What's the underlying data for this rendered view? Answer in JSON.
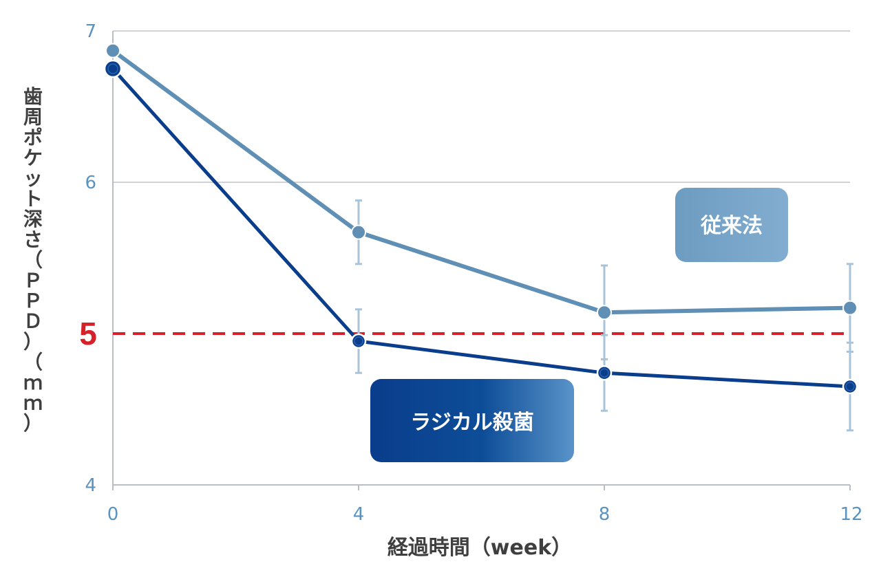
{
  "chart_data": {
    "type": "line",
    "xlabel": "経過時間（week）",
    "ylabel": "歯周ポケット深さ（ＰＰＤ）（ｍｍ）",
    "x": [
      0,
      4,
      8,
      12
    ],
    "x_ticks": [
      "0",
      "4",
      "8",
      "12"
    ],
    "y_ticks": [
      "4",
      "5",
      "6",
      "7"
    ],
    "ylim": [
      4,
      7
    ],
    "xlim": [
      0,
      12
    ],
    "grid": true,
    "reference_line": {
      "value": 5,
      "label": "5",
      "color": "#d6202a",
      "style": "dashed"
    },
    "series": [
      {
        "name": "従来法",
        "values": [
          6.87,
          5.67,
          5.14,
          5.17
        ],
        "error": [
          null,
          0.21,
          0.31,
          0.29
        ],
        "color": "#5f8fb4"
      },
      {
        "name": "ラジカル殺菌",
        "values": [
          6.75,
          4.95,
          4.74,
          4.65
        ],
        "error": [
          null,
          0.21,
          0.25,
          0.29
        ],
        "color": "#0a3d8b"
      }
    ],
    "legend_placement": "inline"
  }
}
